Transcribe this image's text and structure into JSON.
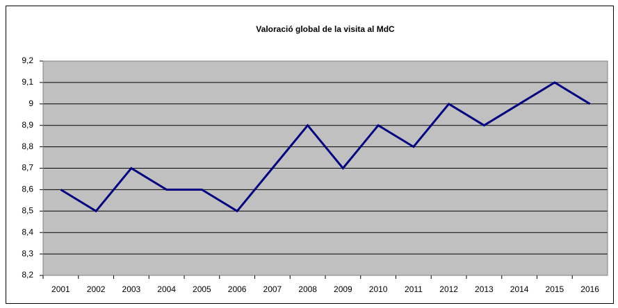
{
  "chart_data": {
    "type": "line",
    "title": "Valoració global de la visita al MdC",
    "categories": [
      "2001",
      "2002",
      "2003",
      "2004",
      "2005",
      "2006",
      "2007",
      "2008",
      "2009",
      "2010",
      "2011",
      "2012",
      "2013",
      "2014",
      "2015",
      "2016"
    ],
    "series": [
      {
        "color": "#000080",
        "values": [
          8.6,
          8.5,
          8.7,
          8.6,
          8.6,
          8.5,
          8.7,
          8.9,
          8.7,
          8.9,
          8.8,
          9.0,
          8.9,
          9.0,
          9.1,
          9.0
        ]
      }
    ],
    "ylim": [
      8.2,
      9.2
    ],
    "yticks": [
      {
        "value": 8.2,
        "label": "8,2"
      },
      {
        "value": 8.3,
        "label": "8,3"
      },
      {
        "value": 8.4,
        "label": "8,4"
      },
      {
        "value": 8.5,
        "label": "8,5"
      },
      {
        "value": 8.6,
        "label": "8,6"
      },
      {
        "value": 8.7,
        "label": "8,7"
      },
      {
        "value": 8.8,
        "label": "8,8"
      },
      {
        "value": 8.9,
        "label": "8,9"
      },
      9,
      {
        "value": 9.1,
        "label": "9,1"
      },
      {
        "value": 9.2,
        "label": "9,2"
      }
    ],
    "grid": true,
    "plot_background": "#c0c0c0"
  }
}
